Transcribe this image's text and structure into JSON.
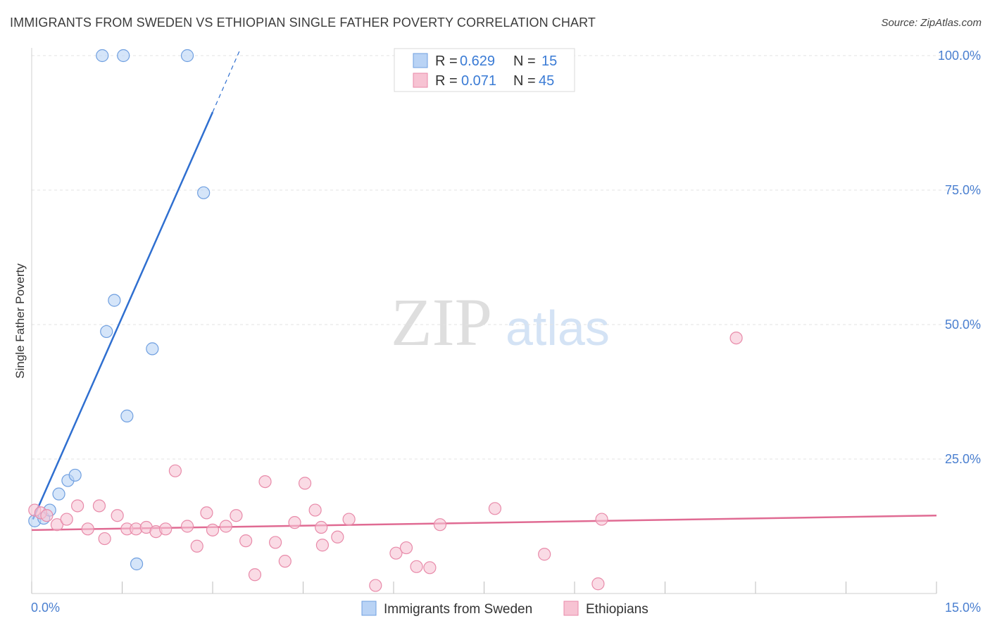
{
  "title": "IMMIGRANTS FROM SWEDEN VS ETHIOPIAN SINGLE FATHER POVERTY CORRELATION CHART",
  "source": "Source: ZipAtlas.com",
  "watermark": {
    "zip": "ZIP",
    "atlas": "atlas"
  },
  "colors": {
    "blue_fill": "#b9d3f5",
    "blue_stroke": "#6f9fe0",
    "blue_line": "#2f6fd0",
    "pink_fill": "#f7c3d3",
    "pink_stroke": "#e88aa9",
    "pink_line": "#e06b93",
    "grid": "#e3e3e3",
    "axis_label": "#4a7fd0"
  },
  "legend": {
    "rows": [
      {
        "r_label": "R =",
        "r_value": "0.629",
        "n_label": "N =",
        "n_value": "15",
        "color": "blue"
      },
      {
        "r_label": "R =",
        "r_value": "0.071",
        "n_label": "N =",
        "n_value": "45",
        "color": "pink"
      }
    ]
  },
  "chart_data": {
    "type": "scatter",
    "title": "IMMIGRANTS FROM SWEDEN VS ETHIOPIAN SINGLE FATHER POVERTY CORRELATION CHART",
    "xlabel": "",
    "ylabel": "Single Father Poverty",
    "xlim": [
      0,
      15
    ],
    "ylim": [
      0,
      100
    ],
    "x_tick_labels": [
      "0.0%",
      "15.0%"
    ],
    "y_tick_values": [
      25,
      50,
      75,
      100
    ],
    "y_tick_labels": [
      "25.0%",
      "50.0%",
      "75.0%",
      "100.0%"
    ],
    "grid": true,
    "series": [
      {
        "name": "Immigrants from Sweden",
        "color": "blue",
        "points": [
          {
            "x": 0.05,
            "y": 13.5
          },
          {
            "x": 0.2,
            "y": 14.0
          },
          {
            "x": 0.3,
            "y": 15.5
          },
          {
            "x": 0.45,
            "y": 18.5
          },
          {
            "x": 0.6,
            "y": 21.0
          },
          {
            "x": 0.72,
            "y": 22.0
          },
          {
            "x": 1.17,
            "y": 100
          },
          {
            "x": 1.52,
            "y": 100
          },
          {
            "x": 2.58,
            "y": 100
          },
          {
            "x": 2.85,
            "y": 74.5
          },
          {
            "x": 1.37,
            "y": 54.5
          },
          {
            "x": 1.24,
            "y": 48.7
          },
          {
            "x": 2.0,
            "y": 45.5
          },
          {
            "x": 1.58,
            "y": 33.0
          },
          {
            "x": 1.74,
            "y": 5.5
          }
        ],
        "trend": {
          "x1": 0.02,
          "y1": 13.8,
          "x2": 3.0,
          "y2": 89.5,
          "dash_to_x": 3.45,
          "dash_to_y": 101
        }
      },
      {
        "name": "Ethiopians",
        "color": "pink",
        "points": [
          {
            "x": 0.05,
            "y": 15.5
          },
          {
            "x": 0.15,
            "y": 15.0
          },
          {
            "x": 0.25,
            "y": 14.5
          },
          {
            "x": 0.42,
            "y": 12.8
          },
          {
            "x": 0.58,
            "y": 13.8
          },
          {
            "x": 0.76,
            "y": 16.3
          },
          {
            "x": 0.93,
            "y": 12.0
          },
          {
            "x": 1.12,
            "y": 16.3
          },
          {
            "x": 1.21,
            "y": 10.2
          },
          {
            "x": 1.42,
            "y": 14.5
          },
          {
            "x": 1.58,
            "y": 12.0
          },
          {
            "x": 1.73,
            "y": 12.0
          },
          {
            "x": 1.9,
            "y": 12.3
          },
          {
            "x": 2.06,
            "y": 11.5
          },
          {
            "x": 2.22,
            "y": 12.0
          },
          {
            "x": 2.38,
            "y": 22.8
          },
          {
            "x": 2.58,
            "y": 12.5
          },
          {
            "x": 2.74,
            "y": 8.8
          },
          {
            "x": 2.9,
            "y": 15.0
          },
          {
            "x": 3.0,
            "y": 11.8
          },
          {
            "x": 3.22,
            "y": 12.5
          },
          {
            "x": 3.39,
            "y": 14.5
          },
          {
            "x": 3.55,
            "y": 9.8
          },
          {
            "x": 3.7,
            "y": 3.5
          },
          {
            "x": 3.87,
            "y": 20.8
          },
          {
            "x": 4.04,
            "y": 9.5
          },
          {
            "x": 4.2,
            "y": 6.0
          },
          {
            "x": 4.36,
            "y": 13.2
          },
          {
            "x": 4.53,
            "y": 20.5
          },
          {
            "x": 4.7,
            "y": 15.5
          },
          {
            "x": 4.8,
            "y": 12.3
          },
          {
            "x": 5.07,
            "y": 10.5
          },
          {
            "x": 5.26,
            "y": 13.8
          },
          {
            "x": 5.7,
            "y": 1.5
          },
          {
            "x": 6.04,
            "y": 7.5
          },
          {
            "x": 6.21,
            "y": 8.5
          },
          {
            "x": 6.38,
            "y": 5.0
          },
          {
            "x": 6.6,
            "y": 4.8
          },
          {
            "x": 6.77,
            "y": 12.8
          },
          {
            "x": 7.68,
            "y": 15.8
          },
          {
            "x": 8.5,
            "y": 7.3
          },
          {
            "x": 9.45,
            "y": 13.8
          },
          {
            "x": 9.39,
            "y": 1.8
          },
          {
            "x": 11.68,
            "y": 47.5
          },
          {
            "x": 4.82,
            "y": 9.0
          }
        ],
        "trend": {
          "x1": 0,
          "y1": 11.8,
          "x2": 15,
          "y2": 14.5
        }
      }
    ]
  },
  "bottom_legend": [
    {
      "label": "Immigrants from Sweden",
      "color": "blue"
    },
    {
      "label": "Ethiopians",
      "color": "pink"
    }
  ]
}
